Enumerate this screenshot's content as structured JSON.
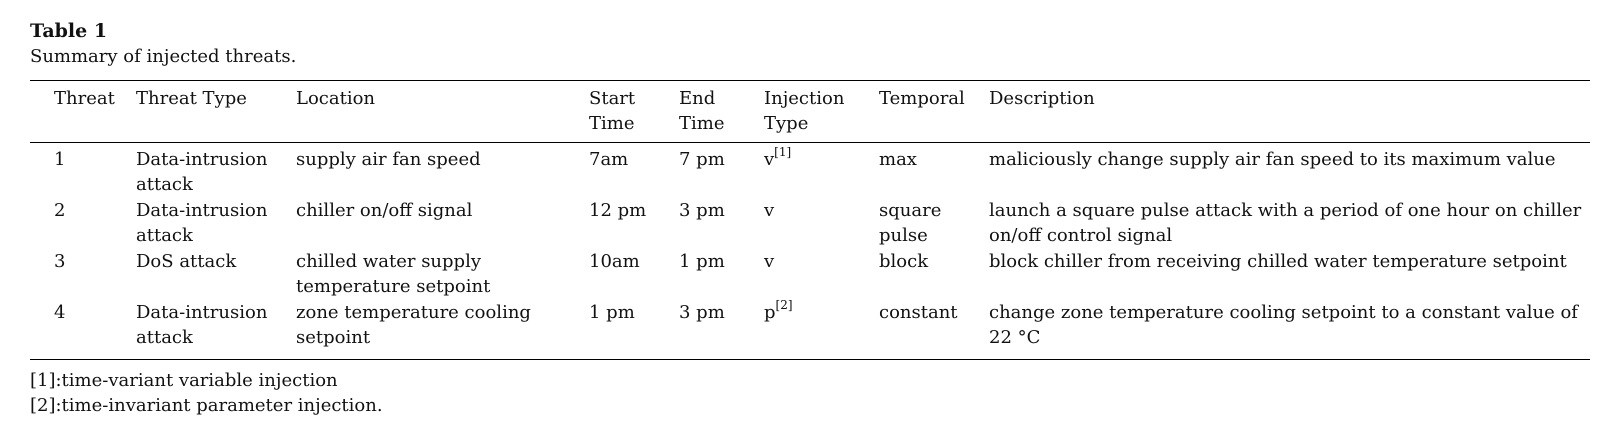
{
  "caption": {
    "label": "Table 1",
    "title": "Summary of injected threats."
  },
  "table": {
    "headers": {
      "threat": "Threat",
      "threat_type": "Threat Type",
      "location": "Location",
      "start_time_1": "Start",
      "start_time_2": "Time",
      "end_time_1": "End",
      "end_time_2": "Time",
      "injection_type_1": "Injection",
      "injection_type_2": "Type",
      "temporal": "Temporal",
      "description": "Description"
    },
    "rows": [
      {
        "threat": "1",
        "threat_type": "Data-intrusion attack",
        "location": "supply air fan speed",
        "start": "7am",
        "end": "7 pm",
        "injection": "v",
        "injection_sup": "[1]",
        "temporal": "max",
        "description": "maliciously change supply air fan speed to its maximum value"
      },
      {
        "threat": "2",
        "threat_type": "Data-intrusion attack",
        "location": "chiller on/off signal",
        "start": "12 pm",
        "end": "3 pm",
        "injection": "v",
        "injection_sup": "",
        "temporal": "square pulse",
        "description": "launch a square pulse attack with a period of one hour on chiller on/off control signal"
      },
      {
        "threat": "3",
        "threat_type": "DoS attack",
        "location": "chilled water supply temperature setpoint",
        "start": "10am",
        "end": "1 pm",
        "injection": "v",
        "injection_sup": "",
        "temporal": "block",
        "description": "block chiller from receiving chilled water temperature setpoint"
      },
      {
        "threat": "4",
        "threat_type": "Data-intrusion attack",
        "location": "zone temperature cooling setpoint",
        "start": "1 pm",
        "end": "3 pm",
        "injection": "p",
        "injection_sup": "[2]",
        "temporal": "constant",
        "description": "change zone temperature cooling setpoint to a constant value of 22 °C"
      }
    ]
  },
  "footnotes": [
    "[1]:time-variant variable injection",
    "[2]:time-invariant parameter injection."
  ]
}
